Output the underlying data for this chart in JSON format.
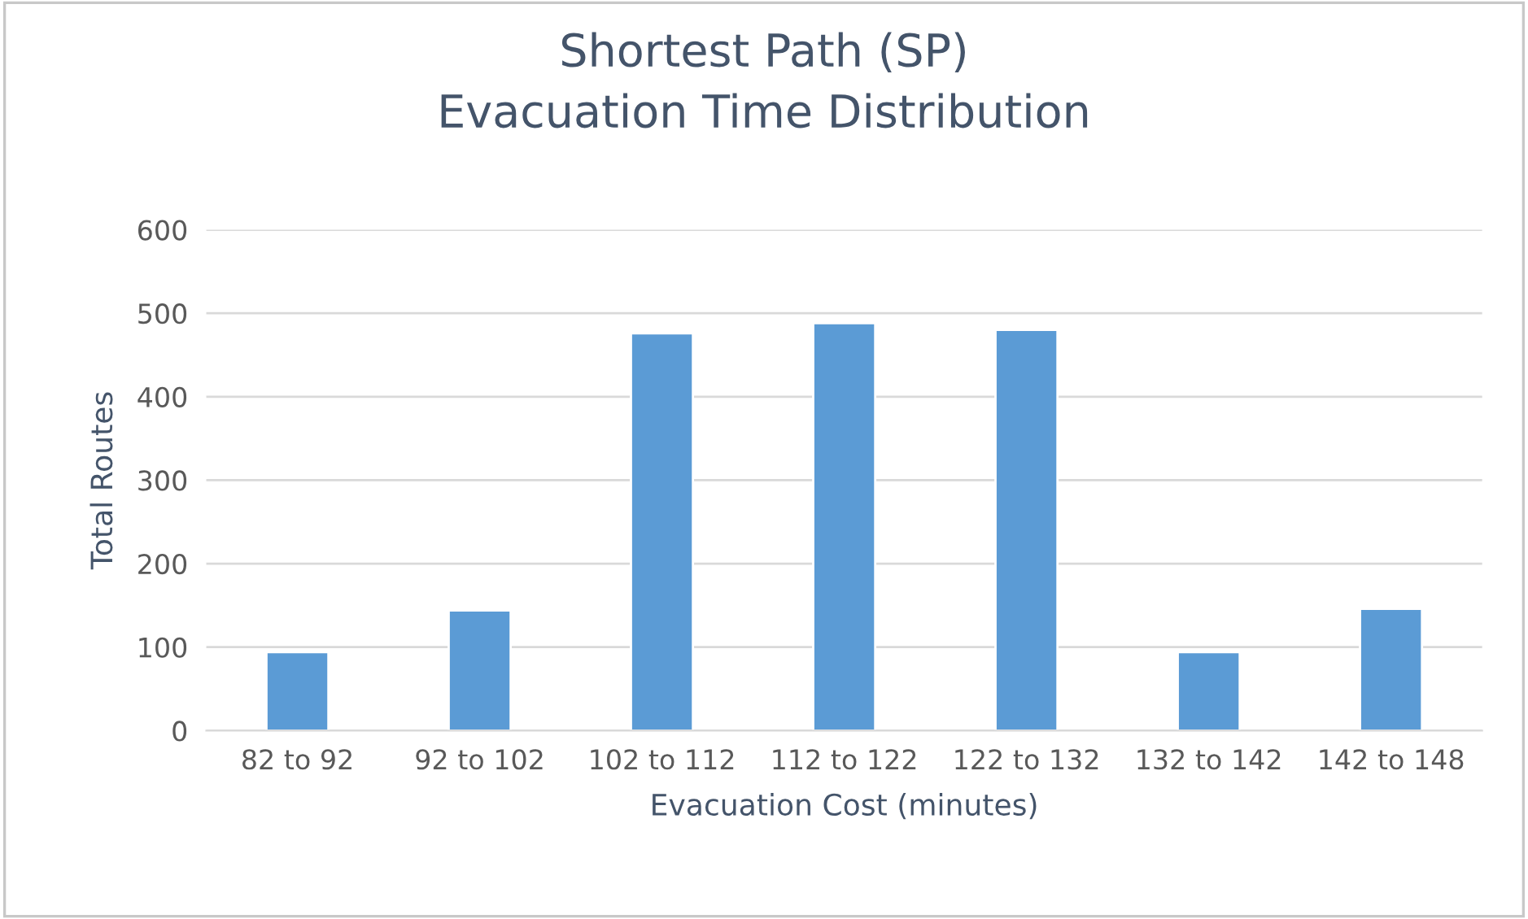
{
  "chart_data": {
    "type": "bar",
    "title": "Shortest Path (SP)\nEvacuation Time Distribution",
    "xlabel": "Evacuation Cost (minutes)",
    "ylabel": "Total Routes",
    "categories": [
      "82 to 92",
      "92 to 102",
      "102 to 112",
      "112 to 122",
      "122 to 132",
      "132 to 142",
      "142 to 148"
    ],
    "values": [
      94,
      144,
      476,
      488,
      480,
      94,
      146
    ],
    "color": "#5b9bd5",
    "ylim": [
      0,
      600
    ],
    "yticks": [
      0,
      100,
      200,
      300,
      400,
      500,
      600
    ],
    "grid": "y",
    "legend": false
  }
}
